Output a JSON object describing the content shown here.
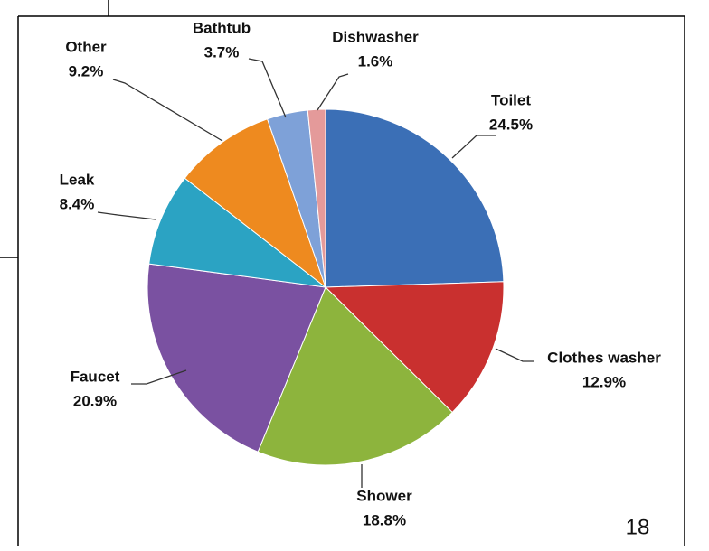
{
  "chart_data": {
    "type": "pie",
    "categories": [
      "Toilet",
      "Clothes washer",
      "Shower",
      "Faucet",
      "Leak",
      "Other",
      "Bathtub",
      "Dishwasher"
    ],
    "values": [
      24.5,
      12.9,
      18.8,
      20.9,
      8.4,
      9.2,
      3.7,
      1.6
    ],
    "value_labels": [
      "24.5%",
      "12.9%",
      "18.8%",
      "20.9%",
      "8.4%",
      "9.2%",
      "3.7%",
      "1.6%"
    ],
    "colors": [
      "#3b6fb6",
      "#c9302f",
      "#8db43d",
      "#7a51a1",
      "#2ba3c3",
      "#ee8a1f",
      "#7ea1d8",
      "#e49a9a"
    ]
  },
  "page_number": "18"
}
